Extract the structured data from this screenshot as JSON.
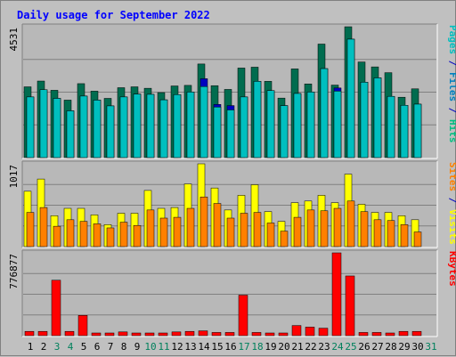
{
  "chart_data": [
    {
      "type": "bar",
      "title": "Daily usage for September 2022",
      "ylabel_max": "4531",
      "right_labels": [
        {
          "text": "Pages",
          "color": "#00bfbf"
        },
        {
          "text": " / ",
          "color": "#0000c0"
        },
        {
          "text": "Files",
          "color": "#0080c0"
        },
        {
          "text": " / ",
          "color": "#0000c0"
        },
        {
          "text": "Hits",
          "color": "#00bf80"
        }
      ],
      "categories": [
        "1",
        "2",
        "3",
        "4",
        "5",
        "6",
        "7",
        "8",
        "9",
        "10",
        "11",
        "12",
        "13",
        "14",
        "15",
        "16",
        "17",
        "18",
        "19",
        "20",
        "21",
        "22",
        "23",
        "24",
        "25",
        "26",
        "27",
        "28",
        "29",
        "30",
        "31"
      ],
      "ylim": [
        0,
        4531
      ],
      "series": [
        {
          "name": "Hits",
          "color": "#006c4f",
          "values": [
            2450,
            2650,
            2330,
            1990,
            2560,
            2300,
            2050,
            2420,
            2450,
            2400,
            2250,
            2480,
            2500,
            3240,
            2490,
            2360,
            3100,
            3130,
            2640,
            2060,
            3070,
            2550,
            3930,
            2510,
            4530,
            3310,
            3140,
            2940,
            2090,
            2380,
            0
          ]
        },
        {
          "name": "Files",
          "color": "#0000c0",
          "values": [
            2100,
            2350,
            2050,
            1620,
            2130,
            1990,
            1790,
            2100,
            2200,
            2190,
            2000,
            2180,
            2270,
            2730,
            1840,
            1800,
            2100,
            2640,
            2320,
            1800,
            2220,
            2270,
            3080,
            2410,
            4100,
            2610,
            2760,
            2120,
            1810,
            1850,
            0
          ]
        },
        {
          "name": "Pages",
          "color": "#00bfbf",
          "values": [
            2100,
            2350,
            2050,
            1620,
            2130,
            1990,
            1790,
            2100,
            2200,
            2190,
            2000,
            2180,
            2270,
            2460,
            1750,
            1650,
            2100,
            2640,
            2320,
            1800,
            2220,
            2270,
            3080,
            2300,
            4100,
            2610,
            2760,
            2120,
            1810,
            1850,
            0
          ]
        }
      ]
    },
    {
      "type": "bar",
      "ylabel_max": "1017",
      "right_labels": [
        {
          "text": "Sites",
          "color": "#ff8000"
        },
        {
          "text": " / ",
          "color": "#0000c0"
        },
        {
          "text": "Visits",
          "color": "#ffff00"
        }
      ],
      "categories": [
        "1",
        "2",
        "3",
        "4",
        "5",
        "6",
        "7",
        "8",
        "9",
        "10",
        "11",
        "12",
        "13",
        "14",
        "15",
        "16",
        "17",
        "18",
        "19",
        "20",
        "21",
        "22",
        "23",
        "24",
        "25",
        "26",
        "27",
        "28",
        "29",
        "30",
        "31"
      ],
      "ylim": [
        0,
        1017
      ],
      "series": [
        {
          "name": "Visits",
          "color": "#ffff00",
          "values": [
            680,
            830,
            380,
            470,
            470,
            390,
            270,
            410,
            410,
            690,
            470,
            480,
            770,
            1017,
            720,
            450,
            630,
            760,
            430,
            310,
            540,
            560,
            630,
            540,
            890,
            520,
            420,
            420,
            380,
            330,
            0
          ]
        },
        {
          "name": "Sites",
          "color": "#ff8000",
          "values": [
            420,
            480,
            250,
            330,
            310,
            280,
            230,
            300,
            260,
            450,
            350,
            360,
            470,
            610,
            530,
            350,
            410,
            420,
            290,
            190,
            360,
            450,
            440,
            470,
            560,
            430,
            330,
            320,
            270,
            180,
            0
          ]
        }
      ]
    },
    {
      "type": "bar",
      "ylabel_max": "776877",
      "right_labels": [
        {
          "text": "KBytes",
          "color": "#ff0000"
        }
      ],
      "categories": [
        "1",
        "2",
        "3",
        "4",
        "5",
        "6",
        "7",
        "8",
        "9",
        "10",
        "11",
        "12",
        "13",
        "14",
        "15",
        "16",
        "17",
        "18",
        "19",
        "20",
        "21",
        "22",
        "23",
        "24",
        "25",
        "26",
        "27",
        "28",
        "29",
        "30",
        "31"
      ],
      "ylim": [
        0,
        776877
      ],
      "series": [
        {
          "name": "KBytes",
          "color": "#ff0000",
          "values": [
            40000,
            40000,
            520000,
            40000,
            190000,
            25000,
            25000,
            35000,
            25000,
            25000,
            25000,
            35000,
            40000,
            45000,
            30000,
            30000,
            380000,
            30000,
            25000,
            25000,
            95000,
            80000,
            70000,
            776877,
            560000,
            30000,
            30000,
            25000,
            40000,
            40000,
            0
          ]
        }
      ]
    }
  ],
  "x_labels": {
    "values": [
      "1",
      "2",
      "3",
      "4",
      "5",
      "6",
      "7",
      "8",
      "9",
      "10",
      "11",
      "12",
      "13",
      "14",
      "15",
      "16",
      "17",
      "18",
      "19",
      "20",
      "21",
      "22",
      "23",
      "24",
      "25",
      "26",
      "27",
      "28",
      "29",
      "30",
      "31"
    ],
    "weekend_color": "#00805c",
    "weekday_color": "#000000",
    "weekend_days": [
      3,
      4,
      10,
      11,
      17,
      18,
      24,
      25,
      31
    ]
  },
  "colors": {
    "background": "#c0c0c0",
    "panel_bg": "#b8b8b8",
    "grid": "#808080",
    "title": "#0000ff"
  }
}
